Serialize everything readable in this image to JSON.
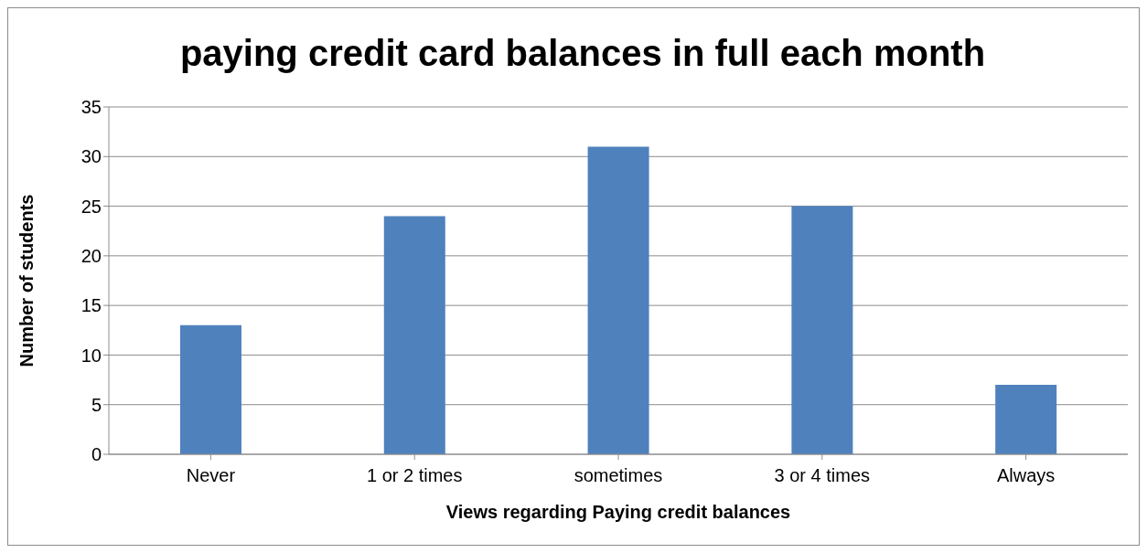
{
  "chart_data": {
    "type": "bar",
    "title": "paying credit card balances in full each month",
    "xlabel": "Views regarding Paying credit balances",
    "ylabel": "Number of students",
    "categories": [
      "Never",
      "1 or 2 times",
      "sometimes",
      "3 or 4 times",
      "Always"
    ],
    "values": [
      13,
      24,
      31,
      25,
      7
    ],
    "color": "#4f81bd",
    "ylim": [
      0,
      35
    ],
    "yticks": [
      0,
      5,
      10,
      15,
      20,
      25,
      30,
      35
    ],
    "grid": "y",
    "legend": false
  }
}
